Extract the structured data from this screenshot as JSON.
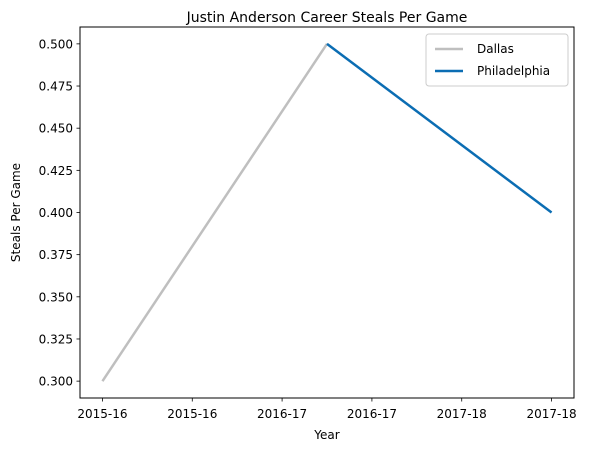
{
  "chart_data": {
    "type": "line",
    "title": "Justin Anderson  Career Steals Per Game",
    "xlabel": "Year",
    "ylabel": "Steals Per Game",
    "x_tick_labels": [
      "2015-16",
      "2015-16",
      "2016-17",
      "2016-17",
      "2017-18",
      "2017-18"
    ],
    "y_tick_labels": [
      "0.300",
      "0.325",
      "0.350",
      "0.375",
      "0.400",
      "0.425",
      "0.450",
      "0.475",
      "0.500"
    ],
    "y_ticks": [
      0.3,
      0.325,
      0.35,
      0.375,
      0.4,
      0.425,
      0.45,
      0.475,
      0.5
    ],
    "xlim": [
      -0.125,
      2.625
    ],
    "ylim": [
      0.29,
      0.51
    ],
    "legend_position": "top-right",
    "series": [
      {
        "name": "Dallas",
        "color": "#bfbfbf",
        "points": [
          {
            "x": 0,
            "y": 0.3
          },
          {
            "x": 1.25,
            "y": 0.5
          }
        ]
      },
      {
        "name": "Philadelphia",
        "color": "#0b6db3",
        "points": [
          {
            "x": 1.25,
            "y": 0.5
          },
          {
            "x": 2.5,
            "y": 0.4
          }
        ]
      }
    ]
  }
}
